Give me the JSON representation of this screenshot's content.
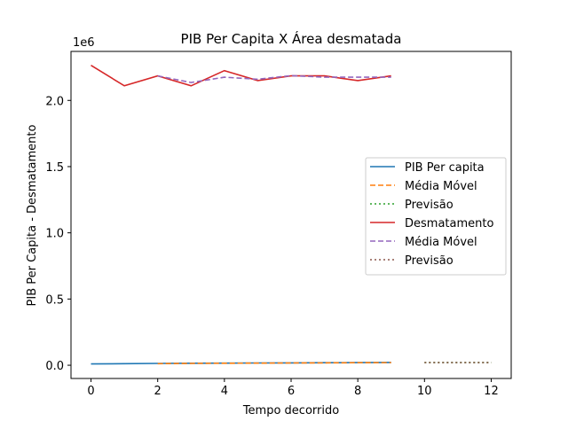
{
  "chart_data": {
    "type": "line",
    "title": "PIB Per Capita X Área desmatada",
    "xlabel": "Tempo decorrido",
    "ylabel": "PIB Per Capita - Desmatamento",
    "y_offset_text": "1e6",
    "xlim": [
      -0.6,
      12.6
    ],
    "ylim": [
      -100000,
      2370000
    ],
    "xticks": [
      0,
      2,
      4,
      6,
      8,
      10,
      12
    ],
    "xtick_labels": [
      "0",
      "2",
      "4",
      "6",
      "8",
      "10",
      "12"
    ],
    "yticks": [
      0,
      500000,
      1000000,
      1500000,
      2000000
    ],
    "ytick_labels": [
      "0.0",
      "0.5",
      "1.0",
      "1.5",
      "2.0"
    ],
    "grid": false,
    "legend_position": "center-right",
    "series": [
      {
        "name": "PIB Per capita",
        "color": "#1f77b4",
        "style": "solid",
        "x": [
          0,
          1,
          2,
          3,
          4,
          5,
          6,
          7,
          8,
          9
        ],
        "y": [
          10000,
          12000,
          14000,
          15000,
          16000,
          17000,
          18000,
          19000,
          20000,
          21000
        ]
      },
      {
        "name": "Média Móvel",
        "color": "#ff7f0e",
        "style": "dashed",
        "x": [
          2,
          3,
          4,
          5,
          6,
          7,
          8,
          9
        ],
        "y": [
          12000,
          13667,
          15000,
          16000,
          17000,
          18000,
          19000,
          20000
        ]
      },
      {
        "name": "Previsão",
        "color": "#2ca02c",
        "style": "dotted",
        "x": [
          10,
          11,
          12
        ],
        "y": [
          20000,
          20000,
          20000
        ]
      },
      {
        "name": "Desmatamento",
        "color": "#d62728",
        "style": "solid",
        "x": [
          0,
          1,
          2,
          3,
          4,
          5,
          6,
          7,
          8,
          9
        ],
        "y": [
          2265000,
          2110000,
          2185000,
          2110000,
          2225000,
          2150000,
          2185000,
          2185000,
          2150000,
          2185000
        ]
      },
      {
        "name": "Média Móvel",
        "color": "#9467bd",
        "style": "dashed",
        "x": [
          2,
          3,
          4,
          5,
          6,
          7,
          8,
          9
        ],
        "y": [
          2185000,
          2135000,
          2175000,
          2160000,
          2187000,
          2175000,
          2175000,
          2175000
        ]
      },
      {
        "name": "Previsão",
        "color": "#8c564b",
        "style": "dotted",
        "x": [
          10,
          11,
          12
        ],
        "y": [
          20000,
          20000,
          20000
        ]
      }
    ]
  }
}
